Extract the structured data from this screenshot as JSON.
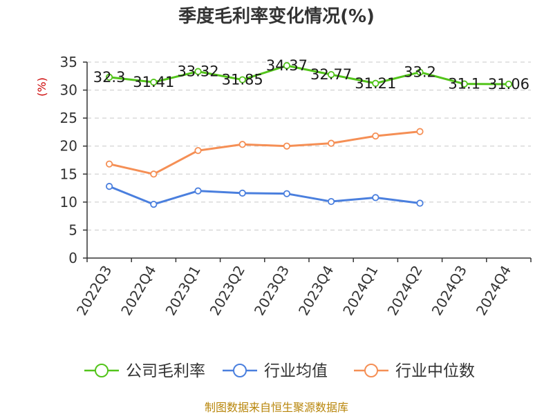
{
  "chart_data": {
    "type": "line",
    "title": "季度毛利率变化情况(%)",
    "ylabel": "(%)",
    "ylim": [
      0,
      35
    ],
    "yticks": [
      0,
      5,
      10,
      15,
      20,
      25,
      30,
      35
    ],
    "grid": true,
    "legend_position": "bottom",
    "categories": [
      "2022Q3",
      "2022Q4",
      "2023Q1",
      "2023Q2",
      "2023Q3",
      "2023Q4",
      "2024Q1",
      "2024Q2",
      "2024Q3",
      "2024Q4"
    ],
    "series": [
      {
        "name": "公司毛利率",
        "color": "#52c41a",
        "show_labels": true,
        "values": [
          32.3,
          31.41,
          33.32,
          31.85,
          34.37,
          32.77,
          31.21,
          33.2,
          31.1,
          31.06
        ]
      },
      {
        "name": "行业均值",
        "color": "#4a7fde",
        "show_labels": false,
        "values": [
          12.8,
          9.6,
          12.0,
          11.6,
          11.5,
          10.1,
          10.8,
          9.8,
          null,
          null
        ]
      },
      {
        "name": "行业中位数",
        "color": "#f58f55",
        "show_labels": false,
        "values": [
          16.8,
          15.0,
          19.2,
          20.3,
          20.0,
          20.5,
          21.8,
          22.6,
          null,
          null
        ]
      }
    ]
  },
  "source": "制图数据来自恒生聚源数据库"
}
